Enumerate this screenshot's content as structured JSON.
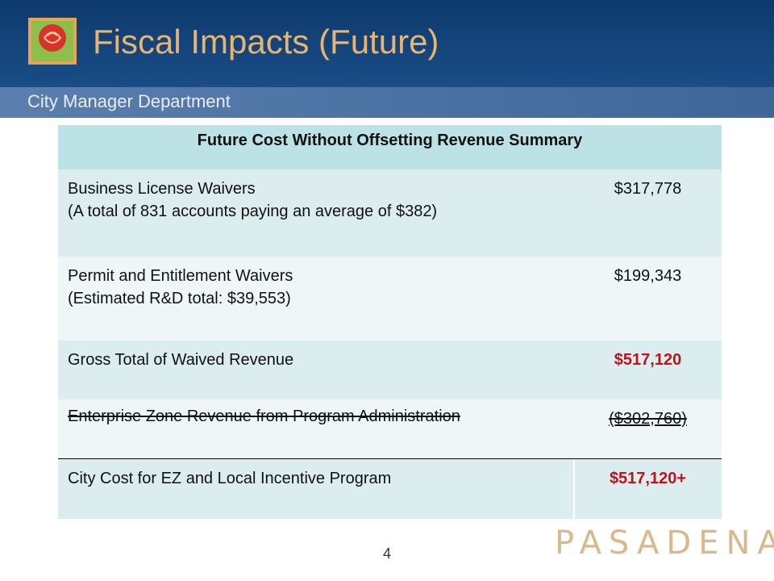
{
  "header": {
    "title": "Fiscal Impacts (Future)",
    "subtitle": "City Manager Department"
  },
  "table": {
    "title": "Future Cost Without Offsetting Revenue Summary",
    "rows": [
      {
        "label": [
          "Business License Waivers",
          "(A total of 831 accounts paying an average of $382)"
        ],
        "value": "$317,778"
      },
      {
        "label": [
          "Permit and Entitlement Waivers",
          "(Estimated R&D total: $39,553)"
        ],
        "value": "$199,343"
      },
      {
        "label": [
          "Gross Total of Waived Revenue"
        ],
        "value": "$517,120"
      },
      {
        "label": [
          "Enterprise Zone Revenue from Program Administration"
        ],
        "value": "($302,760)"
      },
      {
        "label": [
          "City Cost for EZ and Local Incentive Program"
        ],
        "value": "$517,120+"
      }
    ]
  },
  "footer": {
    "page": "4",
    "logo": "PASADENA"
  }
}
